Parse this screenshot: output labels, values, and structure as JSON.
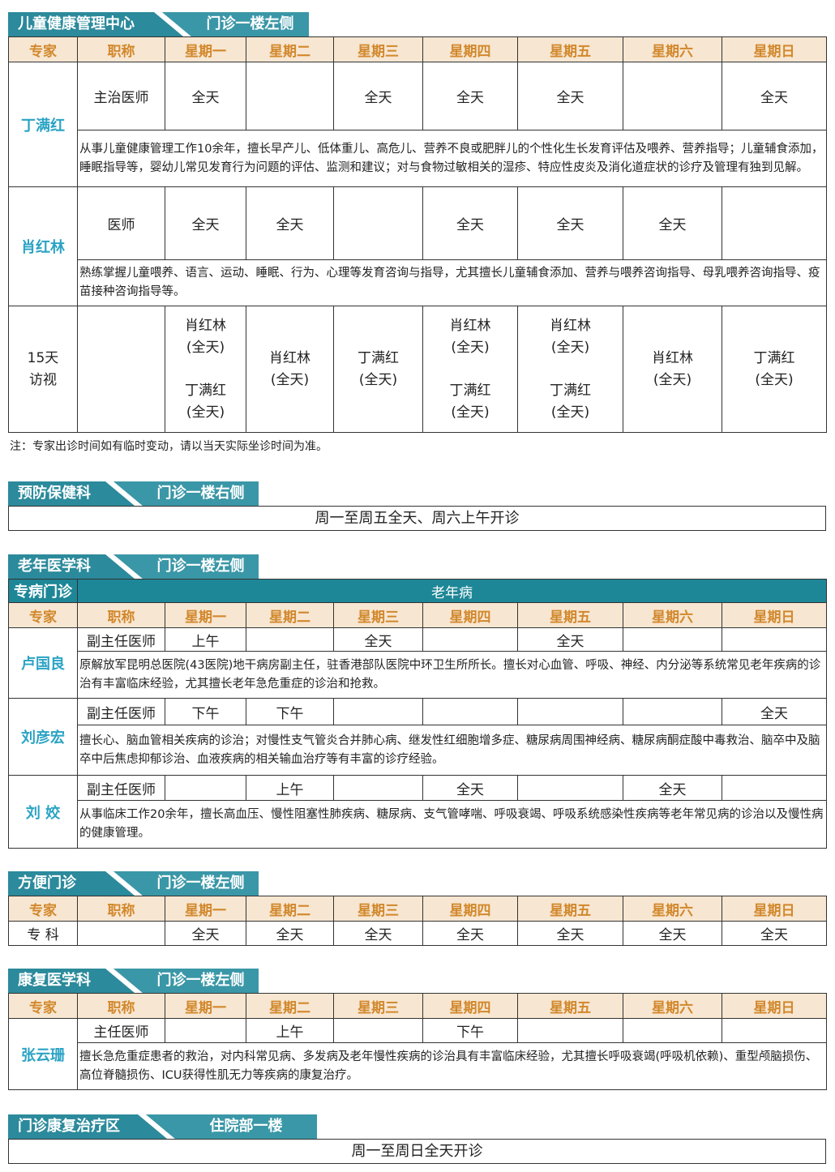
{
  "colors": {
    "tab": "#2b8a9b",
    "header_bg": "#f7e6d1",
    "header_text": "#d2882c",
    "name": "#2ba3c4"
  },
  "headers": [
    "专家",
    "职称",
    "星期一",
    "星期二",
    "星期三",
    "星期四",
    "星期五",
    "星期六",
    "星期日"
  ],
  "sections": [
    {
      "title": "儿童健康管理中心",
      "location": "门诊一楼左侧",
      "doctors": [
        {
          "name": "丁满红",
          "title": "主治医师",
          "schedule": [
            "全天",
            "",
            "全天",
            "全天",
            "全天",
            "",
            "全天"
          ],
          "bio": "从事儿童健康管理工作10余年，擅长早产儿、低体重儿、高危儿、营养不良或肥胖儿的个性化生长发育评估及喂养、营养指导；儿童辅食添加，睡眠指导等，婴幼儿常见发育行为问题的评估、监测和建议；对与食物过敏相关的湿疹、特应性皮炎及消化道症状的诊疗及管理有独到见解。"
        },
        {
          "name": "肖红林",
          "title": "医师",
          "schedule": [
            "全天",
            "全天",
            "",
            "全天",
            "全天",
            "全天",
            ""
          ],
          "bio": "熟练掌握儿童喂养、语言、运动、睡眠、行为、心理等发育咨询与指导，尤其擅长儿童辅食添加、营养与喂养咨询指导、母乳喂养咨询指导、疫苗接种咨询指导等。"
        }
      ],
      "visit": {
        "label": [
          "15天",
          "访视"
        ],
        "cells": [
          [
            [
              "肖红林",
              "(全天)"
            ],
            [
              "丁满红",
              "(全天)"
            ]
          ],
          [
            [
              "肖红林",
              "(全天)"
            ]
          ],
          [
            [
              "丁满红",
              "(全天)"
            ]
          ],
          [
            [
              "肖红林",
              "(全天)"
            ],
            [
              "丁满红",
              "(全天)"
            ]
          ],
          [
            [
              "肖红林",
              "(全天)"
            ],
            [
              "丁满红",
              "(全天)"
            ]
          ],
          [
            [
              "肖红林",
              "(全天)"
            ]
          ],
          [
            [
              "丁满红",
              "(全天)"
            ]
          ]
        ]
      }
    },
    {
      "title": "预防保健科",
      "location": "门诊一楼右侧",
      "bar": "周一至周五全天、周六上午开诊"
    },
    {
      "title": "老年医学科",
      "location": "门诊一楼左侧",
      "special_label": "专病门诊",
      "special_name": "老年病",
      "doctors": [
        {
          "name": "卢国良",
          "title": "副主任医师",
          "schedule": [
            "上午",
            "",
            "全天",
            "",
            "全天",
            "",
            ""
          ],
          "bio": "原解放军昆明总医院(43医院)地干病房副主任，驻香港部队医院中环卫生所所长。擅长对心血管、呼吸、神经、内分泌等系统常见老年疾病的诊治有丰富临床经验，尤其擅长老年急危重症的诊治和抢救。"
        },
        {
          "name": "刘彦宏",
          "title": "副主任医师",
          "schedule": [
            "下午",
            "下午",
            "",
            "",
            "",
            "",
            "全天"
          ],
          "bio": "擅长心、脑血管相关疾病的诊治；对慢性支气管炎合并肺心病、继发性红细胞增多症、糖尿病周围神经病、糖尿病酮症酸中毒救治、脑卒中及脑卒中后焦虑抑郁诊治、血液疾病的相关输血治疗等有丰富的诊疗经验。"
        },
        {
          "name": "刘 姣",
          "title": "副主任医师",
          "schedule": [
            "",
            "上午",
            "",
            "全天",
            "",
            "全天",
            ""
          ],
          "bio": "从事临床工作20余年，擅长高血压、慢性阻塞性肺疾病、糖尿病、支气管哮喘、呼吸衰竭、呼吸系统感染性疾病等老年常见病的诊治以及慢性病的健康管理。"
        }
      ]
    },
    {
      "title": "方便门诊",
      "location": "门诊一楼左侧",
      "doctors": [
        {
          "name": "专 科",
          "title": "",
          "schedule": [
            "全天",
            "全天",
            "全天",
            "全天",
            "全天",
            "全天",
            "全天"
          ]
        }
      ]
    },
    {
      "title": "康复医学科",
      "location": "门诊一楼左侧",
      "doctors": [
        {
          "name": "张云珊",
          "title": "主任医师",
          "schedule": [
            "",
            "上午",
            "",
            "下午",
            "",
            "",
            ""
          ],
          "bio": "擅长急危重症患者的救治，对内科常见病、多发病及老年慢性疾病的诊治具有丰富临床经验，尤其擅长呼吸衰竭(呼吸机依赖)、重型颅脑损伤、高位脊髓损伤、ICU获得性肌无力等疾病的康复治疗。"
        }
      ]
    },
    {
      "title": "门诊康复治疗区",
      "location": "住院部一楼",
      "bar": "周一至周日全天开诊"
    }
  ],
  "note": "注：专家出诊时间如有临时变动，请以当天实际坐诊时间为准。"
}
